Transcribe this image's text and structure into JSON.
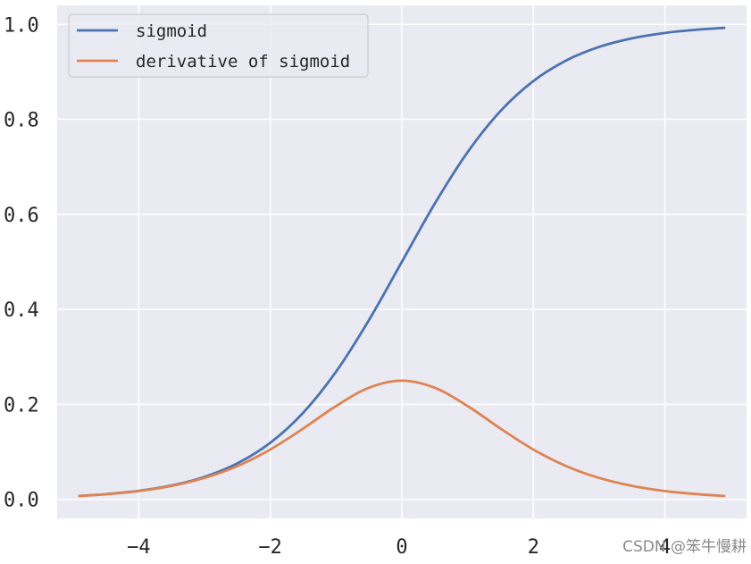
{
  "watermark": "CSDN @笨牛慢耕",
  "chart_data": {
    "type": "line",
    "title": "",
    "xlabel": "",
    "ylabel": "",
    "xlim": [
      -5.24,
      5.24
    ],
    "ylim": [
      -0.04,
      1.04
    ],
    "x_ticks": [
      -4,
      -2,
      0,
      2,
      4
    ],
    "x_tick_labels": [
      "−4",
      "−2",
      "0",
      "2",
      "4"
    ],
    "y_ticks": [
      0.0,
      0.2,
      0.4,
      0.6,
      0.8,
      1.0
    ],
    "y_tick_labels": [
      "0.0",
      "0.2",
      "0.4",
      "0.6",
      "0.8",
      "1.0"
    ],
    "grid": true,
    "legend_position": "upper-left",
    "background_color": "#eaeaf2",
    "grid_color": "#ffffff",
    "x": [
      -4.9,
      -4.5,
      -4.0,
      -3.5,
      -3.0,
      -2.5,
      -2.0,
      -1.5,
      -1.0,
      -0.5,
      0.0,
      0.5,
      1.0,
      1.5,
      2.0,
      2.5,
      3.0,
      3.5,
      4.0,
      4.5,
      4.9
    ],
    "series": [
      {
        "name": "sigmoid",
        "color": "#4c72b0",
        "values": [
          0.0074,
          0.011,
          0.018,
          0.0293,
          0.0474,
          0.0759,
          0.1192,
          0.1824,
          0.2689,
          0.3775,
          0.5,
          0.6225,
          0.7311,
          0.8176,
          0.8808,
          0.9241,
          0.9526,
          0.9707,
          0.982,
          0.989,
          0.9926
        ]
      },
      {
        "name": "derivative of sigmoid",
        "color": "#dd8452",
        "values": [
          0.0073,
          0.0109,
          0.0177,
          0.0285,
          0.0452,
          0.0701,
          0.105,
          0.1491,
          0.1966,
          0.235,
          0.25,
          0.235,
          0.1966,
          0.1491,
          0.105,
          0.0701,
          0.0452,
          0.0285,
          0.0177,
          0.0109,
          0.0073
        ]
      }
    ]
  }
}
